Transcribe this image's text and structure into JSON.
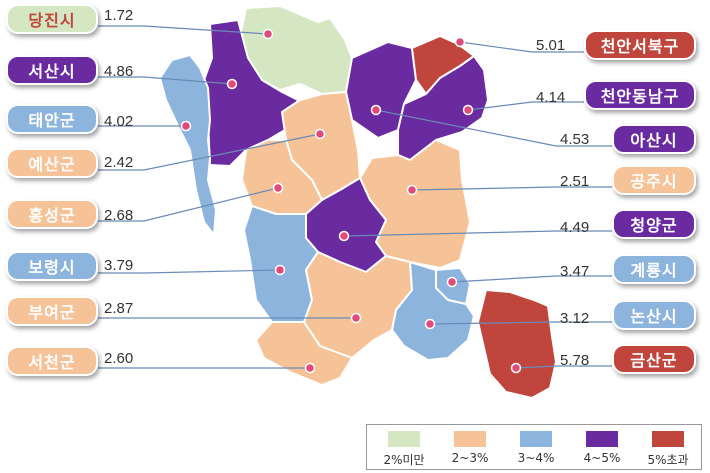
{
  "colors": {
    "under2": "#d5e7c2",
    "2to3": "#f5c397",
    "3to4": "#8db4dc",
    "4to5": "#6a2aa0",
    "over5": "#c0453d"
  },
  "regions": [
    {
      "id": "dangjin",
      "name": "당진시",
      "value": "1.72",
      "cls": "under2"
    },
    {
      "id": "seosan",
      "name": "서산시",
      "value": "4.86",
      "cls": "4to5"
    },
    {
      "id": "taean",
      "name": "태안군",
      "value": "4.02",
      "cls": "3to4"
    },
    {
      "id": "yesan",
      "name": "예산군",
      "value": "2.42",
      "cls": "2to3"
    },
    {
      "id": "hongseong",
      "name": "홍성군",
      "value": "2.68",
      "cls": "2to3"
    },
    {
      "id": "boryeong",
      "name": "보령시",
      "value": "3.79",
      "cls": "3to4"
    },
    {
      "id": "buyeo",
      "name": "부여군",
      "value": "2.87",
      "cls": "2to3"
    },
    {
      "id": "seocheon",
      "name": "서천군",
      "value": "2.60",
      "cls": "2to3"
    },
    {
      "id": "cheonan_n",
      "name": "천안서북구",
      "value": "5.01",
      "cls": "over5"
    },
    {
      "id": "cheonan_s",
      "name": "천안동남구",
      "value": "4.14",
      "cls": "4to5"
    },
    {
      "id": "asan",
      "name": "아산시",
      "value": "4.53",
      "cls": "4to5"
    },
    {
      "id": "gongju",
      "name": "공주시",
      "value": "2.51",
      "cls": "2to3"
    },
    {
      "id": "cheongyang",
      "name": "청양군",
      "value": "4.49",
      "cls": "4to5"
    },
    {
      "id": "gyeryong",
      "name": "계룡시",
      "value": "3.47",
      "cls": "3to4"
    },
    {
      "id": "nonsan",
      "name": "논산시",
      "value": "3.12",
      "cls": "3to4"
    },
    {
      "id": "geumsan",
      "name": "금산군",
      "value": "5.78",
      "cls": "over5"
    }
  ],
  "legend": [
    {
      "label": "2%미만",
      "cls": "under2"
    },
    {
      "label": "2~3%",
      "cls": "2to3"
    },
    {
      "label": "3~4%",
      "cls": "3to4"
    },
    {
      "label": "4~5%",
      "cls": "4to5"
    },
    {
      "label": "5%초과",
      "cls": "over5"
    }
  ]
}
